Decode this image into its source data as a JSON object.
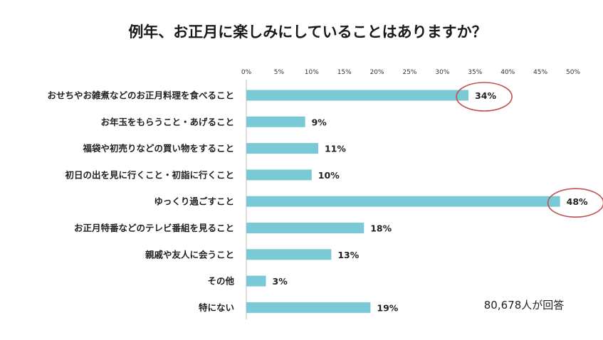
{
  "chart_data": {
    "type": "bar",
    "orientation": "horizontal",
    "title": "例年、お正月に楽しみにしていることはありますか？",
    "categories": [
      "おせちやお雑煮などのお正月料理を食べること",
      "お年玉をもらうこと・あげること",
      "福袋や初売りなどの買い物をすること",
      "初日の出を見に行くこと・初詣に行くこと",
      "ゆっくり過ごすこと",
      "お正月特番などのテレビ番組を見ること",
      "親戚や友人に会うこと",
      "その他",
      "特にない"
    ],
    "values": [
      34,
      9,
      11,
      10,
      48,
      18,
      13,
      3,
      19
    ],
    "value_labels": [
      "34%",
      "9%",
      "11%",
      "10%",
      "48%",
      "18%",
      "13%",
      "3%",
      "19%"
    ],
    "xlim": [
      0,
      50
    ],
    "ticks": [
      "0%",
      "5%",
      "10%",
      "15%",
      "20%",
      "25%",
      "30%",
      "35%",
      "40%",
      "45%",
      "50%"
    ],
    "tick_values": [
      0,
      5,
      10,
      15,
      20,
      25,
      30,
      35,
      40,
      45,
      50
    ],
    "xaxis_position": "top",
    "grid": false,
    "bar_color": "#7ac9d6",
    "highlighted_categories": [
      0,
      4
    ],
    "highlight_color": "#c0504d",
    "annotation": "80,678人が回答"
  }
}
